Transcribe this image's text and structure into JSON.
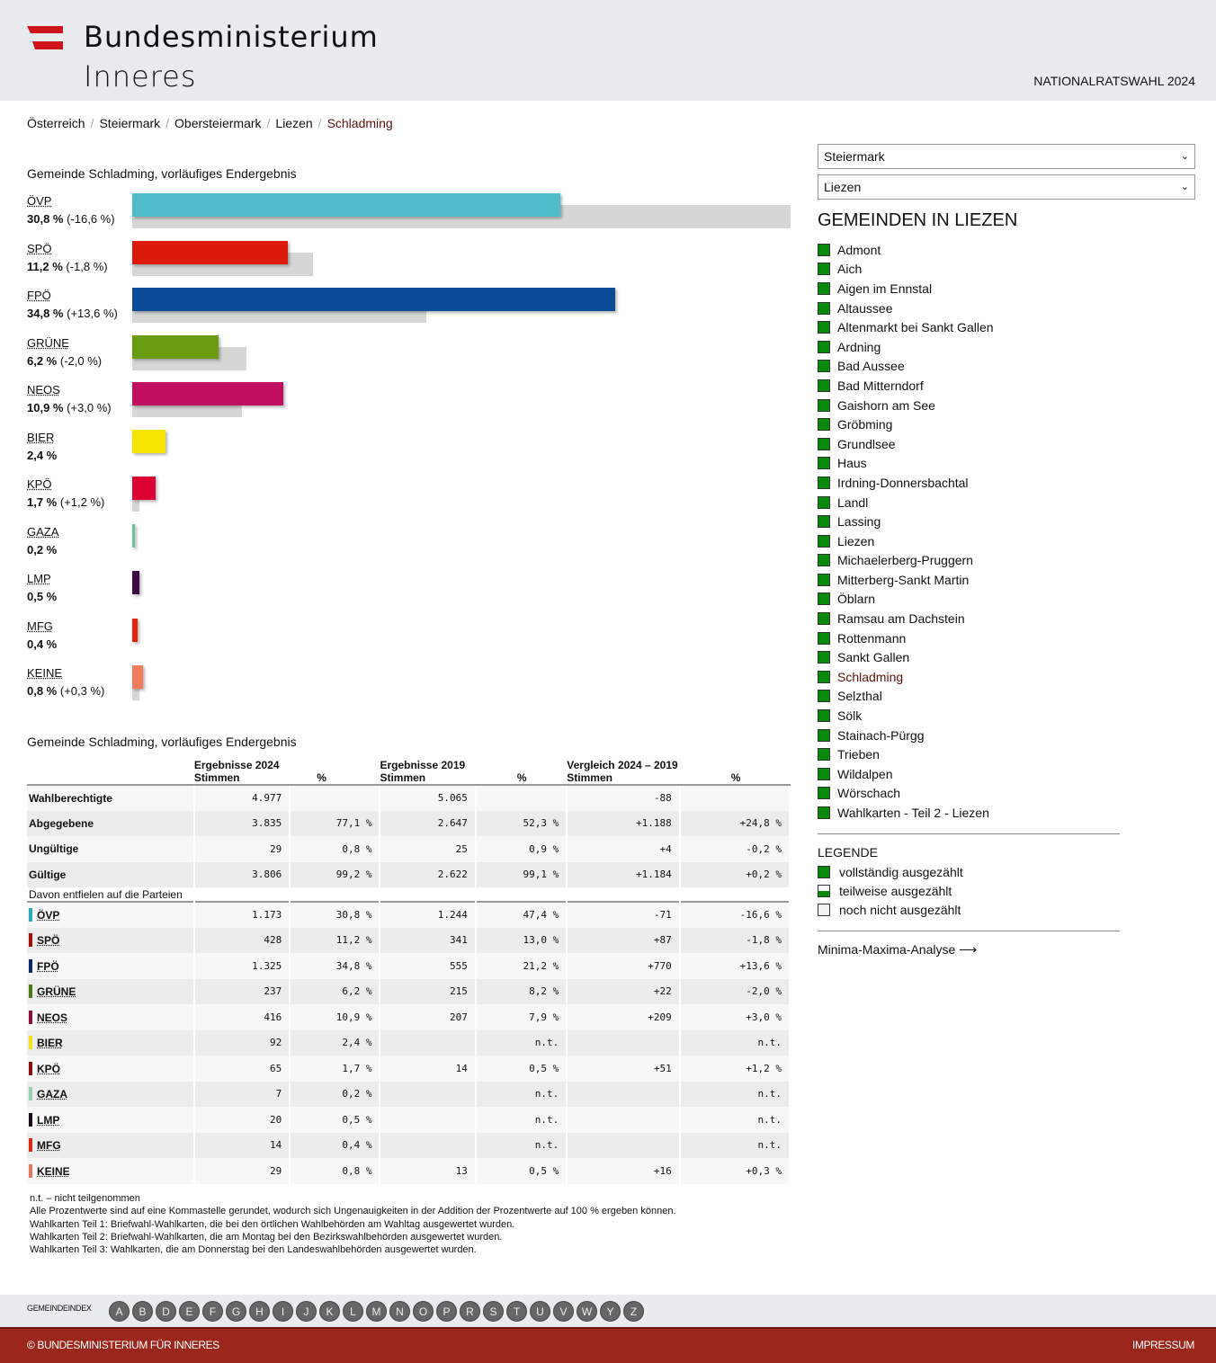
{
  "header": {
    "logo_line1": "Bundesministerium",
    "logo_line2": "Inneres",
    "election": "NATIONALRATSWAHL 2024",
    "flag_colors": [
      "#c8102e",
      "#ffffff",
      "#c8102e"
    ]
  },
  "breadcrumb": [
    "Österreich",
    "Steiermark",
    "Obersteiermark",
    "Liezen",
    "Schladming"
  ],
  "chart_title": "Gemeinde Schladming, vorläufiges Endergebnis",
  "chart_data": {
    "type": "bar",
    "orientation": "horizontal",
    "title": "Gemeinde Schladming, vorläufiges Endergebnis",
    "unit": "%",
    "categories": [
      "ÖVP",
      "SPÖ",
      "FPÖ",
      "GRÜNE",
      "NEOS",
      "BIER",
      "KPÖ",
      "GAZA",
      "LMP",
      "MFG",
      "KEINE"
    ],
    "series": [
      {
        "name": "2024",
        "values": [
          30.8,
          11.2,
          34.8,
          6.2,
          10.9,
          2.4,
          1.7,
          0.2,
          0.5,
          0.4,
          0.8
        ]
      },
      {
        "name": "2019",
        "values": [
          47.4,
          13.0,
          21.2,
          8.2,
          7.9,
          null,
          0.5,
          null,
          null,
          null,
          0.5
        ]
      }
    ],
    "labels": [
      "30,8 %",
      "11,2 %",
      "34,8 %",
      "6,2 %",
      "10,9 %",
      "2,4 %",
      "1,7 %",
      "0,2 %",
      "0,5 %",
      "0,4 %",
      "0,8 %"
    ],
    "diffs": [
      "(-16,6 %)",
      "(-1,8 %)",
      "(+13,6 %)",
      "(-2,0 %)",
      "(+3,0 %)",
      "",
      "(+1,2 %)",
      "",
      "",
      "",
      "(+0,3 %)"
    ],
    "colors": [
      "#4fbcca",
      "#dc1a0c",
      "#0a4c98",
      "#6a9c12",
      "#c20e60",
      "#f5e300",
      "#dc0033",
      "#6fc497",
      "#3a0a40",
      "#e52410",
      "#f07c5c"
    ],
    "xlim": [
      0,
      47.4
    ]
  },
  "table": {
    "title": "Gemeinde Schladming, vorläufiges Endergebnis",
    "headers": {
      "g2024": "Ergebnisse 2024",
      "g2019": "Ergebnisse 2019",
      "gcmp": "Vergleich 2024 – 2019",
      "stimmen": "Stimmen",
      "pct": "%"
    },
    "summary": [
      {
        "label": "Wahlberechtigte",
        "v24": "4.977",
        "p24": "",
        "v19": "5.065",
        "p19": "",
        "dv": "-88",
        "dp": ""
      },
      {
        "label": "Abgegebene",
        "v24": "3.835",
        "p24": "77,1 %",
        "v19": "2.647",
        "p19": "52,3 %",
        "dv": "+1.188",
        "dp": "+24,8 %"
      },
      {
        "label": "Ungültige",
        "v24": "29",
        "p24": "0,8 %",
        "v19": "25",
        "p19": "0,9 %",
        "dv": "+4",
        "dp": "-0,2 %"
      },
      {
        "label": "Gültige",
        "v24": "3.806",
        "p24": "99,2 %",
        "v19": "2.622",
        "p19": "99,1 %",
        "dv": "+1.184",
        "dp": "+0,2 %"
      }
    ],
    "subheading": "Davon entfielen auf die Parteien",
    "parties": [
      {
        "label": "ÖVP",
        "color": "#2aa7b8",
        "v24": "1.173",
        "p24": "30,8 %",
        "v19": "1.244",
        "p19": "47,4 %",
        "dv": "-71",
        "dp": "-16,6 %"
      },
      {
        "label": "SPÖ",
        "color": "#a01010",
        "v24": "428",
        "p24": "11,2 %",
        "v19": "341",
        "p19": "13,0 %",
        "dv": "+87",
        "dp": "-1,8 %"
      },
      {
        "label": "FPÖ",
        "color": "#0a2a6a",
        "v24": "1.325",
        "p24": "34,8 %",
        "v19": "555",
        "p19": "21,2 %",
        "dv": "+770",
        "dp": "+13,6 %"
      },
      {
        "label": "GRÜNE",
        "color": "#4a7a1a",
        "v24": "237",
        "p24": "6,2 %",
        "v19": "215",
        "p19": "8,2 %",
        "dv": "+22",
        "dp": "-2,0 %"
      },
      {
        "label": "NEOS",
        "color": "#8a1040",
        "v24": "416",
        "p24": "10,9 %",
        "v19": "207",
        "p19": "7,9 %",
        "dv": "+209",
        "dp": "+3,0 %"
      },
      {
        "label": "BIER",
        "color": "#f5e020",
        "v24": "92",
        "p24": "2,4 %",
        "v19": "",
        "p19": "n.t.",
        "dv": "",
        "dp": "n.t."
      },
      {
        "label": "KPÖ",
        "color": "#8a1010",
        "v24": "65",
        "p24": "1,7 %",
        "v19": "14",
        "p19": "0,5 %",
        "dv": "+51",
        "dp": "+1,2 %"
      },
      {
        "label": "GAZA",
        "color": "#9ad0b0",
        "v24": "7",
        "p24": "0,2 %",
        "v19": "",
        "p19": "n.t.",
        "dv": "",
        "dp": "n.t."
      },
      {
        "label": "LMP",
        "color": "#1a0a1a",
        "v24": "20",
        "p24": "0,5 %",
        "v19": "",
        "p19": "n.t.",
        "dv": "",
        "dp": "n.t."
      },
      {
        "label": "MFG",
        "color": "#d82a10",
        "v24": "14",
        "p24": "0,4 %",
        "v19": "",
        "p19": "n.t.",
        "dv": "",
        "dp": "n.t."
      },
      {
        "label": "KEINE",
        "color": "#e07a60",
        "v24": "29",
        "p24": "0,8 %",
        "v19": "13",
        "p19": "0,5 %",
        "dv": "+16",
        "dp": "+0,3 %"
      }
    ]
  },
  "notes": [
    "n.t. – nicht teilgenommen",
    "Alle Prozentwerte sind auf eine Kommastelle gerundet, wodurch sich Ungenauigkeiten in der Addition der Prozentwerte auf 100 % ergeben können.",
    "Wahlkarten Teil 1: Briefwahl-Wahlkarten, die bei den örtlichen Wahlbehörden am Wahltag ausgewertet wurden.",
    "Wahlkarten Teil 2: Briefwahl-Wahlkarten, die am Montag bei den Bezirkswahlbehörden ausgewertet wurden.",
    "Wahlkarten Teil 3: Wahlkarten, die am Donnerstag bei den Landeswahlbehörden ausgewertet wurden."
  ],
  "sidebar": {
    "select_state": "Steiermark",
    "select_district": "Liezen",
    "heading": "GEMEINDEN IN LIEZEN",
    "gemeinden": [
      "Admont",
      "Aich",
      "Aigen im Ennstal",
      "Altaussee",
      "Altenmarkt bei Sankt Gallen",
      "Ardning",
      "Bad Aussee",
      "Bad Mitterndorf",
      "Gaishorn am See",
      "Gröbming",
      "Grundlsee",
      "Haus",
      "Irdning-Donnersbachtal",
      "Landl",
      "Lassing",
      "Liezen",
      "Michaelerberg-Pruggern",
      "Mitterberg-Sankt Martin",
      "Öblarn",
      "Ramsau am Dachstein",
      "Rottenmann",
      "Sankt Gallen",
      "Schladming",
      "Selzthal",
      "Sölk",
      "Stainach-Pürgg",
      "Trieben",
      "Wildalpen",
      "Wörschach",
      "Wahlkarten - Teil 2 - Liezen"
    ],
    "active": "Schladming",
    "status_color": "#0a8a0a",
    "legend_heading": "LEGENDE",
    "legend": [
      "vollständig ausgezählt",
      "teilweise ausgezählt",
      "noch nicht ausgezählt"
    ],
    "analysis_link": "Minima-Maxima-Analyse",
    "analysis_arrow": "⟶"
  },
  "index": {
    "label": "GEMEINDEINDEX",
    "letters": [
      "A",
      "B",
      "D",
      "E",
      "F",
      "G",
      "H",
      "I",
      "J",
      "K",
      "L",
      "M",
      "N",
      "O",
      "P",
      "R",
      "S",
      "T",
      "U",
      "V",
      "W",
      "Y",
      "Z"
    ]
  },
  "footer": {
    "copyright": "© BUNDESMINISTERIUM FÜR INNERES",
    "impressum": "IMPRESSUM"
  }
}
